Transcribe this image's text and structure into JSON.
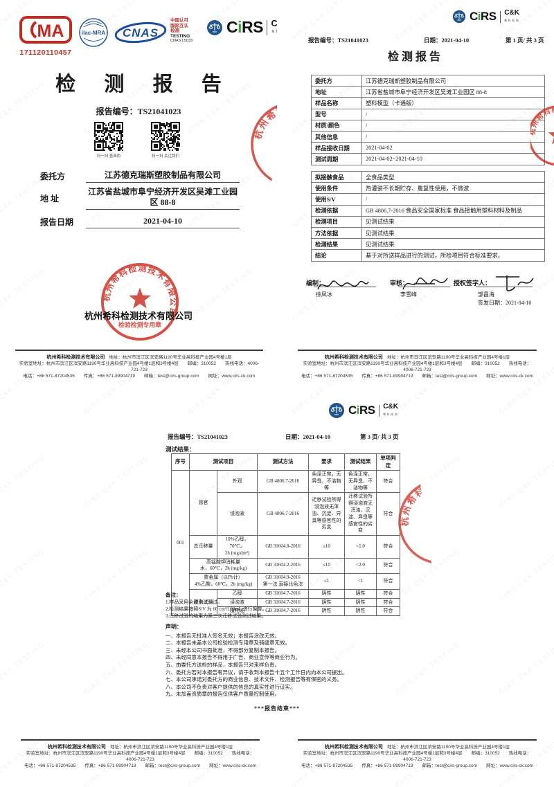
{
  "watermark": {
    "text": "CIRS C&K TESTING"
  },
  "brand": {
    "cma_number": "171120110457",
    "ilac_text": "ilac-MRA",
    "cnas_text": "CNAS",
    "cnas_lines": {
      "l1": "中国认可",
      "l2": "国际互认",
      "l3": "检测",
      "l4": "TESTING",
      "l5": "CNAS L5033"
    },
    "cirs_c": "C",
    "cirs_i": "i",
    "cirs_rs": "RS",
    "ck_text": "C&K",
    "ck_subtext": "希科检测"
  },
  "page1": {
    "title": "检 测 报 告",
    "report_no": "报告编号：TS21041023",
    "qr_caption_left": "扫一扫 查真伪",
    "qr_caption_right": "扫一扫 关注我们",
    "client_label": "委托方",
    "client_value": "江苏德克瑞斯塑胶制品有限公司",
    "address_label": "地 址",
    "address_value": "江苏省盐城市阜宁经济开发区吴滩工业园区 88-8",
    "date_label": "报告日期",
    "date_value": "2021-04-10",
    "company_name": "杭州希科检测技术有限公司"
  },
  "stamp": {
    "ring_text": "杭州希科检测技术有限公司",
    "bottom_text": "检验检测专用章"
  },
  "page2": {
    "report_no": "报告编号：TS21041023",
    "date": "日期：2021-04-10",
    "page_no": "第 1 页/ 共 3 页",
    "title": "检测报告",
    "info": {
      "r1l": "委托方",
      "r1v": "江苏德克瑞斯塑胶制品有限公司",
      "r2l": "地址",
      "r2v": "江苏省盐城市阜宁经济开发区吴滩工业园区 88-8",
      "r3l": "样品名称",
      "r3v": "塑料模型（卡通版）",
      "r4l": "型号",
      "r4v": "/",
      "r5l": "材质/颜色",
      "r5v": "/",
      "r6l": "其他信息",
      "r6v": "/",
      "r7l": "样品接收日期",
      "r7v": "2021-04-02",
      "r8l": "测试周期",
      "r8v": "2021-04-02~2021-04-10"
    },
    "detail": {
      "r1l": "拟接触食品",
      "r1v": "全食品类型",
      "r2l": "使用条件",
      "r2v": "热灌装不长期贮存、重复性使用，不微波",
      "r3l": "使用S/V",
      "r3v": "/",
      "r4l": "检测依据",
      "r4v": "GB 4806.7-2016 食品安全国家标准 食品接触用塑料材料及制品",
      "r5l": "检测项目",
      "r5v": "见测试结果",
      "r6l": "方法依据",
      "r6v": "见测试结果",
      "r7l": "检测结果",
      "r7v": "见测试结果",
      "r8l": "结论",
      "r8v": "基于对所送样品进行的测试，所检项目符合标准要求。"
    },
    "sign": {
      "prepared_label": "编制：",
      "prepared_name": "徐凤冰",
      "reviewed_label": "审核：",
      "reviewed_name": "李雪峰",
      "authorized_label": "授权签字人：",
      "authorized_name": "邹昌海",
      "issue_date": "签发日期：2021-04-10"
    }
  },
  "page3": {
    "report_no": "报告编号：TS21041023",
    "date": "日期：2021-04-10",
    "page_no": "第 3 页/ 共 3 页",
    "section_title": "测试结果：",
    "table": {
      "h_no": "序号",
      "h_item": "测试项目",
      "h_method": "测试方法",
      "h_req": "要求",
      "h_result": "测试结果",
      "h_verdict": "单项判定",
      "no": "001",
      "g_sensory": "感官",
      "r1_item": "外观",
      "r1_method": "GB 4806.7-2016",
      "r1_req": "色泽正常，无异臭、不洁物等",
      "r1_result": "色泽正常，无异臭、不洁物等",
      "r1_verdict": "符合",
      "r2_item": "浸泡液",
      "r2_method": "GB 4806.7-2016",
      "r2_req": "迁移试验所得浸泡液无浑浊、沉淀、异臭等感官性的劣变",
      "r2_result": "迁移试验所得浸泡液无浑浊、沉淀、异臭等感官性的劣变",
      "r2_verdict": "符合",
      "r3_group": "总迁移量",
      "r3_item": "10%乙醇，70℃，\n2h (mg/dm²)",
      "r3_method": "GB 31604.8-2016",
      "r3_req": "≤10",
      "r3_result": "<1.0",
      "r3_verdict": "符合",
      "r4_item": "高锰酸钾消耗量\n水，60℃，2h (mg/kg)",
      "r4_method": "GB 31604.2-2016",
      "r4_req": "≤10",
      "r4_result": "<2.0",
      "r4_verdict": "符合",
      "r5_item": "重金属（以Pb计）\n4%乙酸，60℃，2h (mg/kg)",
      "r5_method": "GB 31604.9-2016\n第一法 直接比色法",
      "r5_req": "≤1",
      "r5_result": "<1",
      "r5_verdict": "符合",
      "g_decolor": "脱色试验",
      "r6_item": "乙醇",
      "r6_method": "GB 31604.7-2016",
      "r6_req": "阴性",
      "r6_result": "阴性",
      "r6_verdict": "符合",
      "r7_item": "浸泡液",
      "r7_method": "GB 31604.7-2016",
      "r7_req": "阴性",
      "r7_result": "阴性",
      "r7_verdict": "符合",
      "r8_item": "植物油",
      "r8_method": "GB 31604.7-2016",
      "r8_req": "阴性",
      "r8_result": "阴性",
      "r8_verdict": "符合"
    },
    "notes_title": "备注：",
    "notes": {
      "n1": "1.样品采用全浸泡法测试。",
      "n2": "2.检测结果按照S/V 为 60 cm²/100mL 进行换算。",
      "n3": "3.迁移试验的结果为第三次迁移试验测试结果。"
    },
    "statements_title": "声明：",
    "statements": {
      "s1": "一、本报告无批准人签名无效；本报告涂改无效。",
      "s2": "二、本报告未盖本公司检验检测专用章及骑缝章无效。",
      "s3": "三、未经本公司书面批准，不得部分复制本报告。",
      "s4": "四、未经同意本报告不得用于广告、商业宣传等商业行为。",
      "s5": "五、由委托方送检的样品，本报告只对来样负责。",
      "s6": "六、委托方若对本报告有异议，请于收到本报告十五个工作日内向本公司提出。",
      "s7": "七、本公司承诺对委托方的商业信息、技术文件、检测报告等有保密的义务。",
      "s8": "八、本公司不负责对客户提供的信息的真实性进行证实。",
      "s9": "九、未加盖资质章的报告仅供客户质量控制使用。"
    },
    "end_text": "***报告结束***"
  },
  "footer": {
    "company": "杭州希科检测技术有限公司",
    "address": "地址：杭州市滨江区滨安路1190号华业高科技产业园4号楼1层",
    "line2": "实验室地址：杭州市滨江区滨安路1190号华业高科技产业园4号楼1层和3号楼4层　　邮编：310052　　热线电话：4006-721-723",
    "line3": "电话：+86 571-87204535　　传真：+86 571-89904719　　邮箱：test@cirs-group.com　　网址：www.cirs-ck.com"
  }
}
